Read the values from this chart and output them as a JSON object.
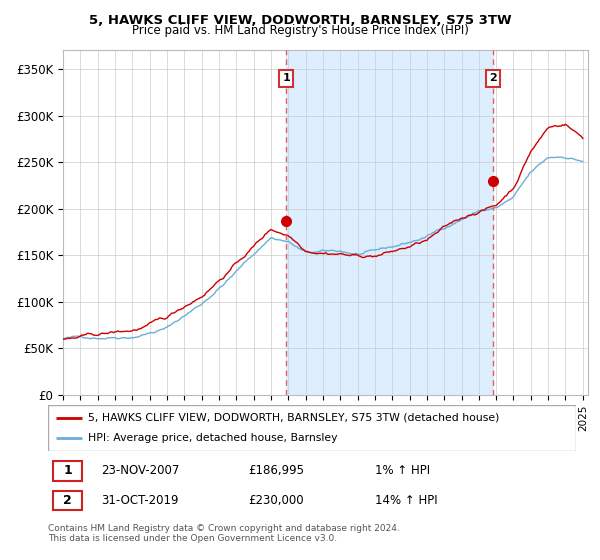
{
  "title": "5, HAWKS CLIFF VIEW, DODWORTH, BARNSLEY, S75 3TW",
  "subtitle": "Price paid vs. HM Land Registry's House Price Index (HPI)",
  "legend_line1": "5, HAWKS CLIFF VIEW, DODWORTH, BARNSLEY, S75 3TW (detached house)",
  "legend_line2": "HPI: Average price, detached house, Barnsley",
  "transaction1_date": "23-NOV-2007",
  "transaction1_price": "£186,995",
  "transaction1_hpi": "1% ↑ HPI",
  "transaction2_date": "31-OCT-2019",
  "transaction2_price": "£230,000",
  "transaction2_hpi": "14% ↑ HPI",
  "footer": "Contains HM Land Registry data © Crown copyright and database right 2024.\nThis data is licensed under the Open Government Licence v3.0.",
  "hpi_color": "#6baed6",
  "price_color": "#cc0000",
  "vline_color": "#e06060",
  "shade_color": "#ddeeff",
  "ylim": [
    0,
    370000
  ],
  "yticks": [
    0,
    50000,
    100000,
    150000,
    200000,
    250000,
    300000,
    350000
  ],
  "ytick_labels": [
    "£0",
    "£50K",
    "£100K",
    "£150K",
    "£200K",
    "£250K",
    "£300K",
    "£350K"
  ],
  "x_start_year": 1995,
  "x_end_year": 2025,
  "t1_year": 2007.88,
  "t1_price": 186995,
  "t2_year": 2019.83,
  "t2_price": 230000,
  "figwidth": 6.0,
  "figheight": 5.6,
  "dpi": 100
}
